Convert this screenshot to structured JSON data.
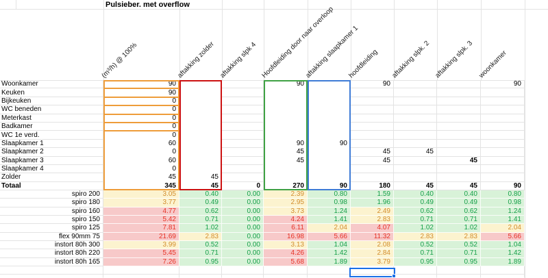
{
  "sheet": {
    "title": "Pulsieber. met overflow",
    "column_headers": [
      "(m³/h) @ 100%",
      "aftakking zolder",
      "aftakking slpk 4",
      "Hoofdleiding door naar overloop",
      "aftakking slaapkamer 1",
      "hoofdleiding",
      "aftakking slpk. 2",
      "aftakking slpk. 3",
      "woonkamer"
    ],
    "rooms": [
      {
        "label": "Woonkamer",
        "values": [
          "90",
          "",
          "",
          "90",
          "",
          "90",
          "",
          "",
          "90"
        ]
      },
      {
        "label": "Keuken",
        "values": [
          "90",
          "",
          "",
          "",
          "",
          "",
          "",
          "",
          ""
        ]
      },
      {
        "label": "Bijkeuken",
        "values": [
          "0",
          "",
          "",
          "",
          "",
          "",
          "",
          "",
          ""
        ]
      },
      {
        "label": "WC beneden",
        "values": [
          "0",
          "",
          "",
          "",
          "",
          "",
          "",
          "",
          ""
        ]
      },
      {
        "label": "Meterkast",
        "values": [
          "0",
          "",
          "",
          "",
          "",
          "",
          "",
          "",
          ""
        ]
      },
      {
        "label": "Badkamer",
        "values": [
          "0",
          "",
          "",
          "",
          "",
          "",
          "",
          "",
          ""
        ]
      },
      {
        "label": "WC 1e verd.",
        "values": [
          "0",
          "",
          "",
          "",
          "",
          "",
          "",
          "",
          ""
        ]
      },
      {
        "label": "Slaapkamer 1",
        "values": [
          "60",
          "",
          "",
          "90",
          "90",
          "",
          "",
          "",
          ""
        ]
      },
      {
        "label": "Slaapkamer 2",
        "values": [
          "0",
          "",
          "",
          "45",
          "",
          "45",
          "45",
          "",
          ""
        ]
      },
      {
        "label": "Slaapkamer 3",
        "values": [
          "60",
          "",
          "",
          "45",
          "",
          "45",
          "",
          "45",
          ""
        ],
        "bold_cells": [
          7
        ]
      },
      {
        "label": "Slaapkamer 4",
        "values": [
          "0",
          "",
          "",
          "",
          "",
          "",
          "",
          "",
          ""
        ]
      },
      {
        "label": "Zolder",
        "values": [
          "45",
          "45",
          "",
          "",
          "",
          "",
          "",
          "",
          ""
        ]
      },
      {
        "label": "Totaal",
        "bold": true,
        "values": [
          "345",
          "45",
          "0",
          "270",
          "90",
          "180",
          "45",
          "45",
          "90"
        ]
      }
    ],
    "ducts": [
      {
        "label": "spiro 200",
        "cells": [
          [
            "3.05",
            "y"
          ],
          [
            "0.40",
            "g"
          ],
          [
            "0.00",
            "g"
          ],
          [
            "2.39",
            "y"
          ],
          [
            "0.80",
            "g"
          ],
          [
            "1.59",
            "g"
          ],
          [
            "0.40",
            "g"
          ],
          [
            "0.40",
            "g"
          ],
          [
            "0.80",
            "g"
          ]
        ]
      },
      {
        "label": "spiro 180",
        "cells": [
          [
            "3.77",
            "y"
          ],
          [
            "0.49",
            "g"
          ],
          [
            "0.00",
            "g"
          ],
          [
            "2.95",
            "y"
          ],
          [
            "0.98",
            "g"
          ],
          [
            "1.96",
            "g"
          ],
          [
            "0.49",
            "g"
          ],
          [
            "0.49",
            "g"
          ],
          [
            "0.98",
            "g"
          ]
        ]
      },
      {
        "label": "spiro 160",
        "cells": [
          [
            "4.77",
            "r"
          ],
          [
            "0.62",
            "g"
          ],
          [
            "0.00",
            "g"
          ],
          [
            "3.73",
            "y"
          ],
          [
            "1.24",
            "g"
          ],
          [
            "2.49",
            "y"
          ],
          [
            "0.62",
            "g"
          ],
          [
            "0.62",
            "g"
          ],
          [
            "1.24",
            "g"
          ]
        ]
      },
      {
        "label": "spiro 150",
        "cells": [
          [
            "5.42",
            "r"
          ],
          [
            "0.71",
            "g"
          ],
          [
            "0.00",
            "g"
          ],
          [
            "4.24",
            "r"
          ],
          [
            "1.41",
            "g"
          ],
          [
            "2.83",
            "y"
          ],
          [
            "0.71",
            "g"
          ],
          [
            "0.71",
            "g"
          ],
          [
            "1.41",
            "g"
          ]
        ]
      },
      {
        "label": "spiro 125",
        "cells": [
          [
            "7.81",
            "r"
          ],
          [
            "1.02",
            "g"
          ],
          [
            "0.00",
            "g"
          ],
          [
            "6.11",
            "r"
          ],
          [
            "2.04",
            "y"
          ],
          [
            "4.07",
            "r"
          ],
          [
            "1.02",
            "g"
          ],
          [
            "1.02",
            "g"
          ],
          [
            "2.04",
            "y"
          ]
        ]
      },
      {
        "label": "flex 90mm 75",
        "cells": [
          [
            "21.69",
            "r"
          ],
          [
            "2.83",
            "y"
          ],
          [
            "0.00",
            "g"
          ],
          [
            "16.98",
            "r"
          ],
          [
            "5.66",
            "r"
          ],
          [
            "11.32",
            "r"
          ],
          [
            "2.83",
            "y"
          ],
          [
            "2.83",
            "y"
          ],
          [
            "5.66",
            "r"
          ]
        ]
      },
      {
        "label": "instort 80h 300",
        "cells": [
          [
            "3.99",
            "y"
          ],
          [
            "0.52",
            "g"
          ],
          [
            "0.00",
            "g"
          ],
          [
            "3.13",
            "y"
          ],
          [
            "1.04",
            "g"
          ],
          [
            "2.08",
            "y"
          ],
          [
            "0.52",
            "g"
          ],
          [
            "0.52",
            "g"
          ],
          [
            "1.04",
            "g"
          ]
        ]
      },
      {
        "label": "instort 80h 220",
        "cells": [
          [
            "5.45",
            "r"
          ],
          [
            "0.71",
            "g"
          ],
          [
            "0.00",
            "g"
          ],
          [
            "4.26",
            "r"
          ],
          [
            "1.42",
            "g"
          ],
          [
            "2.84",
            "y"
          ],
          [
            "0.71",
            "g"
          ],
          [
            "0.71",
            "g"
          ],
          [
            "1.42",
            "g"
          ]
        ]
      },
      {
        "label": "instort 80h 165",
        "cells": [
          [
            "7.26",
            "r"
          ],
          [
            "0.95",
            "g"
          ],
          [
            "0.00",
            "g"
          ],
          [
            "5.68",
            "r"
          ],
          [
            "1.89",
            "g"
          ],
          [
            "3.79",
            "y"
          ],
          [
            "0.95",
            "g"
          ],
          [
            "0.95",
            "g"
          ],
          [
            "1.89",
            "g"
          ]
        ]
      }
    ],
    "colors": {
      "ok_bg": "#D8F2D8",
      "ok_text": "#17A04A",
      "warn_bg": "#FCF3CF",
      "warn_text": "#D28E2E",
      "bad_bg": "#F7C9C9",
      "bad_text": "#E63226",
      "box_orange": "#EE9C39",
      "box_red": "#CC1111",
      "box_green": "#3FA144",
      "box_blue": "#3E7BD6",
      "selection": "#1A6FE8",
      "gridline": "#E3E3E3"
    }
  }
}
